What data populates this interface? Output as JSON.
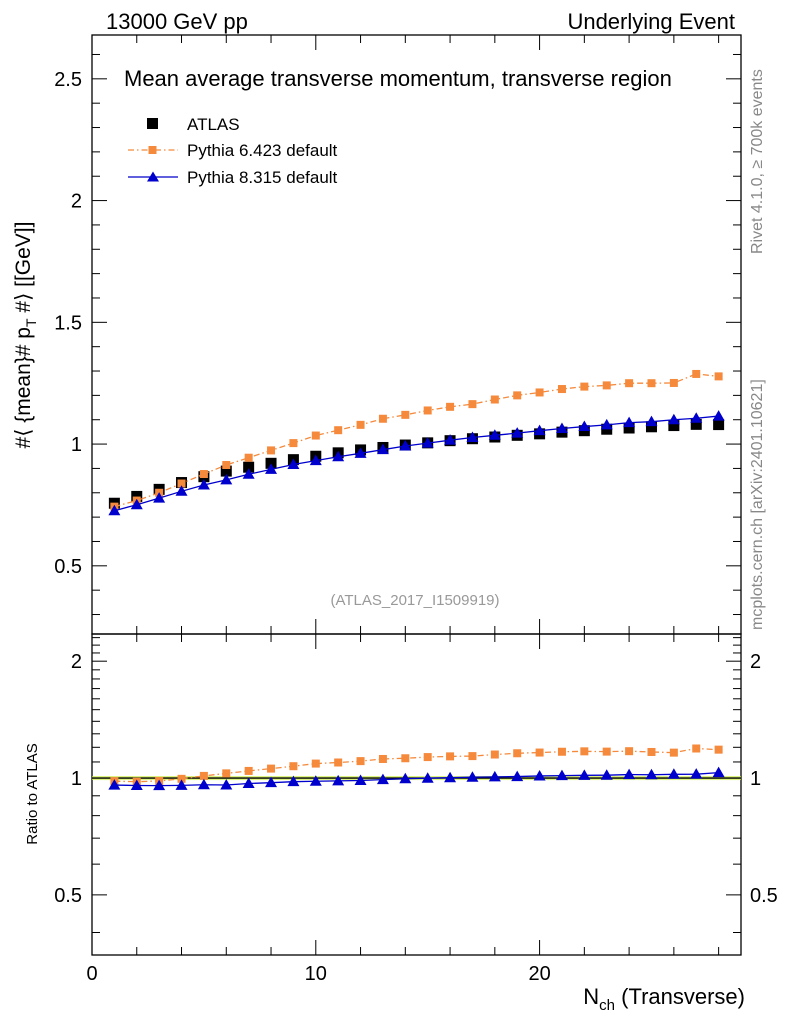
{
  "header": {
    "left": "13000 GeV pp",
    "right": "Underlying Event"
  },
  "side_labels": {
    "rivet": "Rivet 4.1.0, ≥ 700k events",
    "mcplots": "mcplots.cern.ch [arXiv:2401.10621]"
  },
  "colors": {
    "atlas": "#000000",
    "pythia6": "#f58a3c",
    "pythia8": "#0000cc",
    "band": "#ccee44"
  },
  "chart_data": {
    "type": "scatter",
    "title": "Mean average transverse momentum, transverse region",
    "analysis_id": "(ATLAS_2017_I1509919)",
    "xlabel": {
      "main": "N",
      "sub": "ch",
      "rest": " (Transverse)"
    },
    "ylabel": "#⟨ {mean}# p_T #⟩ [[GeV]]",
    "ylabel_main": {
      "a": "#⟨ {mean}# p",
      "sub": "T",
      "b": " #⟩ [[GeV]]"
    },
    "ratio_ylabel": "Ratio to ATLAS",
    "xlim": [
      0,
      29
    ],
    "ylim": [
      0.22,
      2.68
    ],
    "ratio_ylim": [
      0.35,
      2.35
    ],
    "xticks": [
      0,
      10,
      20
    ],
    "xtick_labels": [
      "0",
      "10",
      "20"
    ],
    "yticks": [
      0.5,
      1,
      1.5,
      2,
      2.5
    ],
    "ytick_labels": [
      "0.5",
      "1",
      "1.5",
      "2",
      "2.5"
    ],
    "ratio_yticks": [
      0.5,
      1,
      2
    ],
    "ratio_ytick_labels": [
      "0.5",
      "1",
      "2"
    ],
    "legend": [
      "ATLAS",
      "Pythia 6.423 default",
      "Pythia 8.315 default"
    ],
    "x": [
      1,
      2,
      3,
      4,
      5,
      6,
      7,
      8,
      9,
      10,
      11,
      12,
      13,
      14,
      15,
      16,
      17,
      18,
      19,
      20,
      21,
      22,
      23,
      24,
      25,
      26,
      27,
      28
    ],
    "series": [
      {
        "name": "ATLAS",
        "values": [
          0.757,
          0.785,
          0.814,
          0.842,
          0.866,
          0.889,
          0.905,
          0.921,
          0.936,
          0.95,
          0.964,
          0.976,
          0.986,
          0.996,
          1.005,
          1.014,
          1.022,
          1.029,
          1.036,
          1.042,
          1.049,
          1.055,
          1.061,
          1.066,
          1.071,
          1.076,
          1.081,
          1.08
        ]
      },
      {
        "name": "Pythia 6.423 default",
        "values": [
          0.743,
          0.768,
          0.8,
          0.838,
          0.877,
          0.914,
          0.944,
          0.974,
          1.004,
          1.035,
          1.057,
          1.079,
          1.104,
          1.12,
          1.138,
          1.153,
          1.164,
          1.183,
          1.2,
          1.212,
          1.226,
          1.236,
          1.241,
          1.25,
          1.25,
          1.251,
          1.288,
          1.278
        ]
      },
      {
        "name": "Pythia 8.315 default",
        "values": [
          0.726,
          0.751,
          0.778,
          0.806,
          0.832,
          0.853,
          0.876,
          0.896,
          0.916,
          0.932,
          0.948,
          0.962,
          0.977,
          0.992,
          1.004,
          1.016,
          1.027,
          1.036,
          1.045,
          1.055,
          1.064,
          1.072,
          1.079,
          1.088,
          1.092,
          1.1,
          1.106,
          1.115
        ]
      }
    ]
  }
}
